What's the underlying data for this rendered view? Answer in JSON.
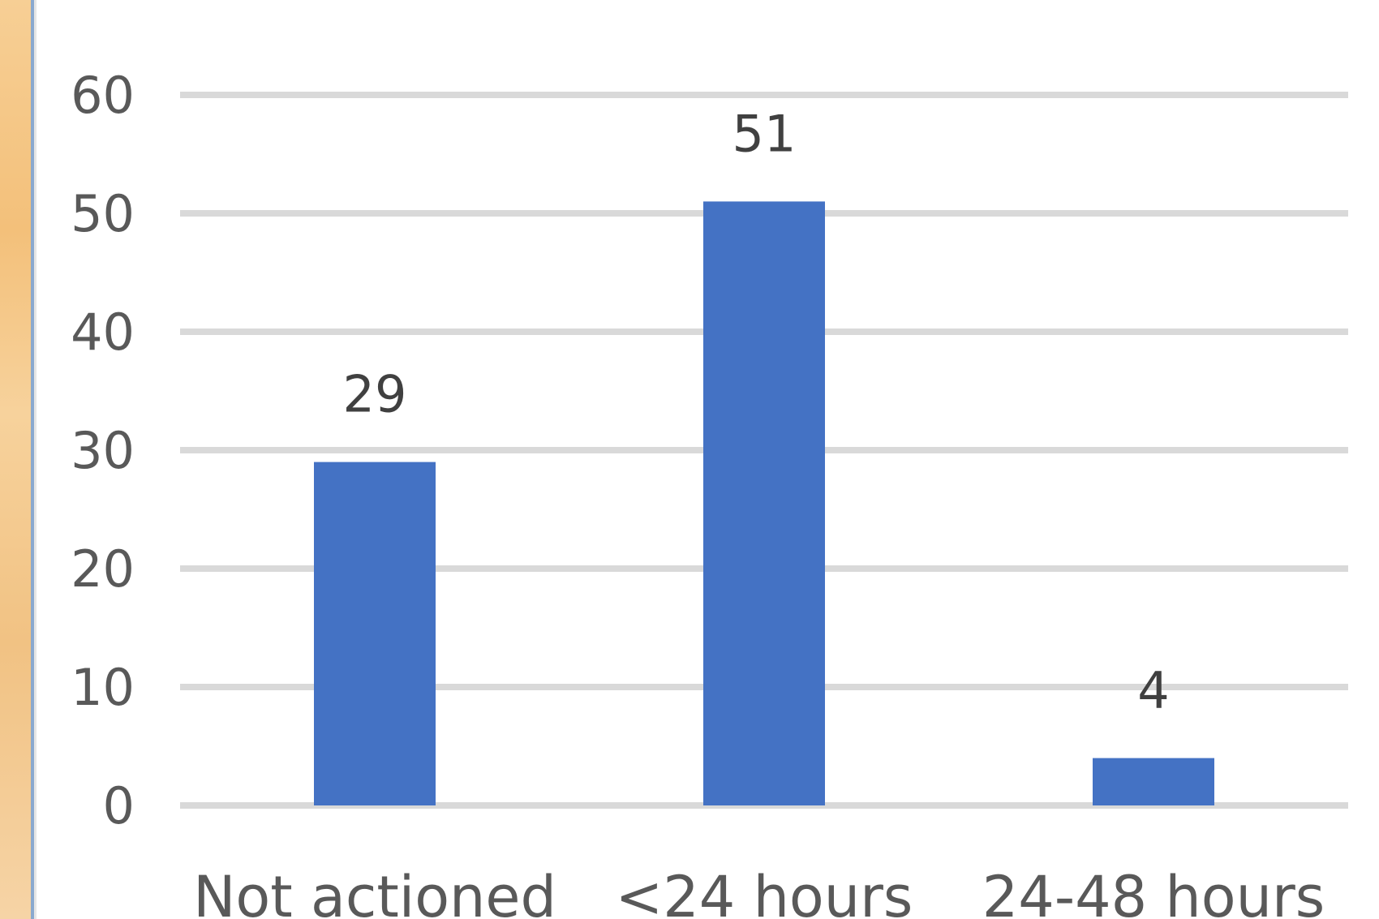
{
  "chart_data": {
    "type": "bar",
    "title": "",
    "xlabel": "",
    "ylabel": "",
    "categories": [
      "Not actioned",
      "<24 hours",
      "24-48 hours"
    ],
    "values": [
      29,
      51,
      4
    ],
    "data_labels": [
      "29",
      "51",
      "4"
    ],
    "yticks": [
      "0",
      "10",
      "20",
      "30",
      "40",
      "50",
      "60"
    ],
    "ylim": [
      0,
      60
    ],
    "grid": true,
    "bar_color": "#4472c4",
    "grid_color": "#d9d9d9"
  }
}
